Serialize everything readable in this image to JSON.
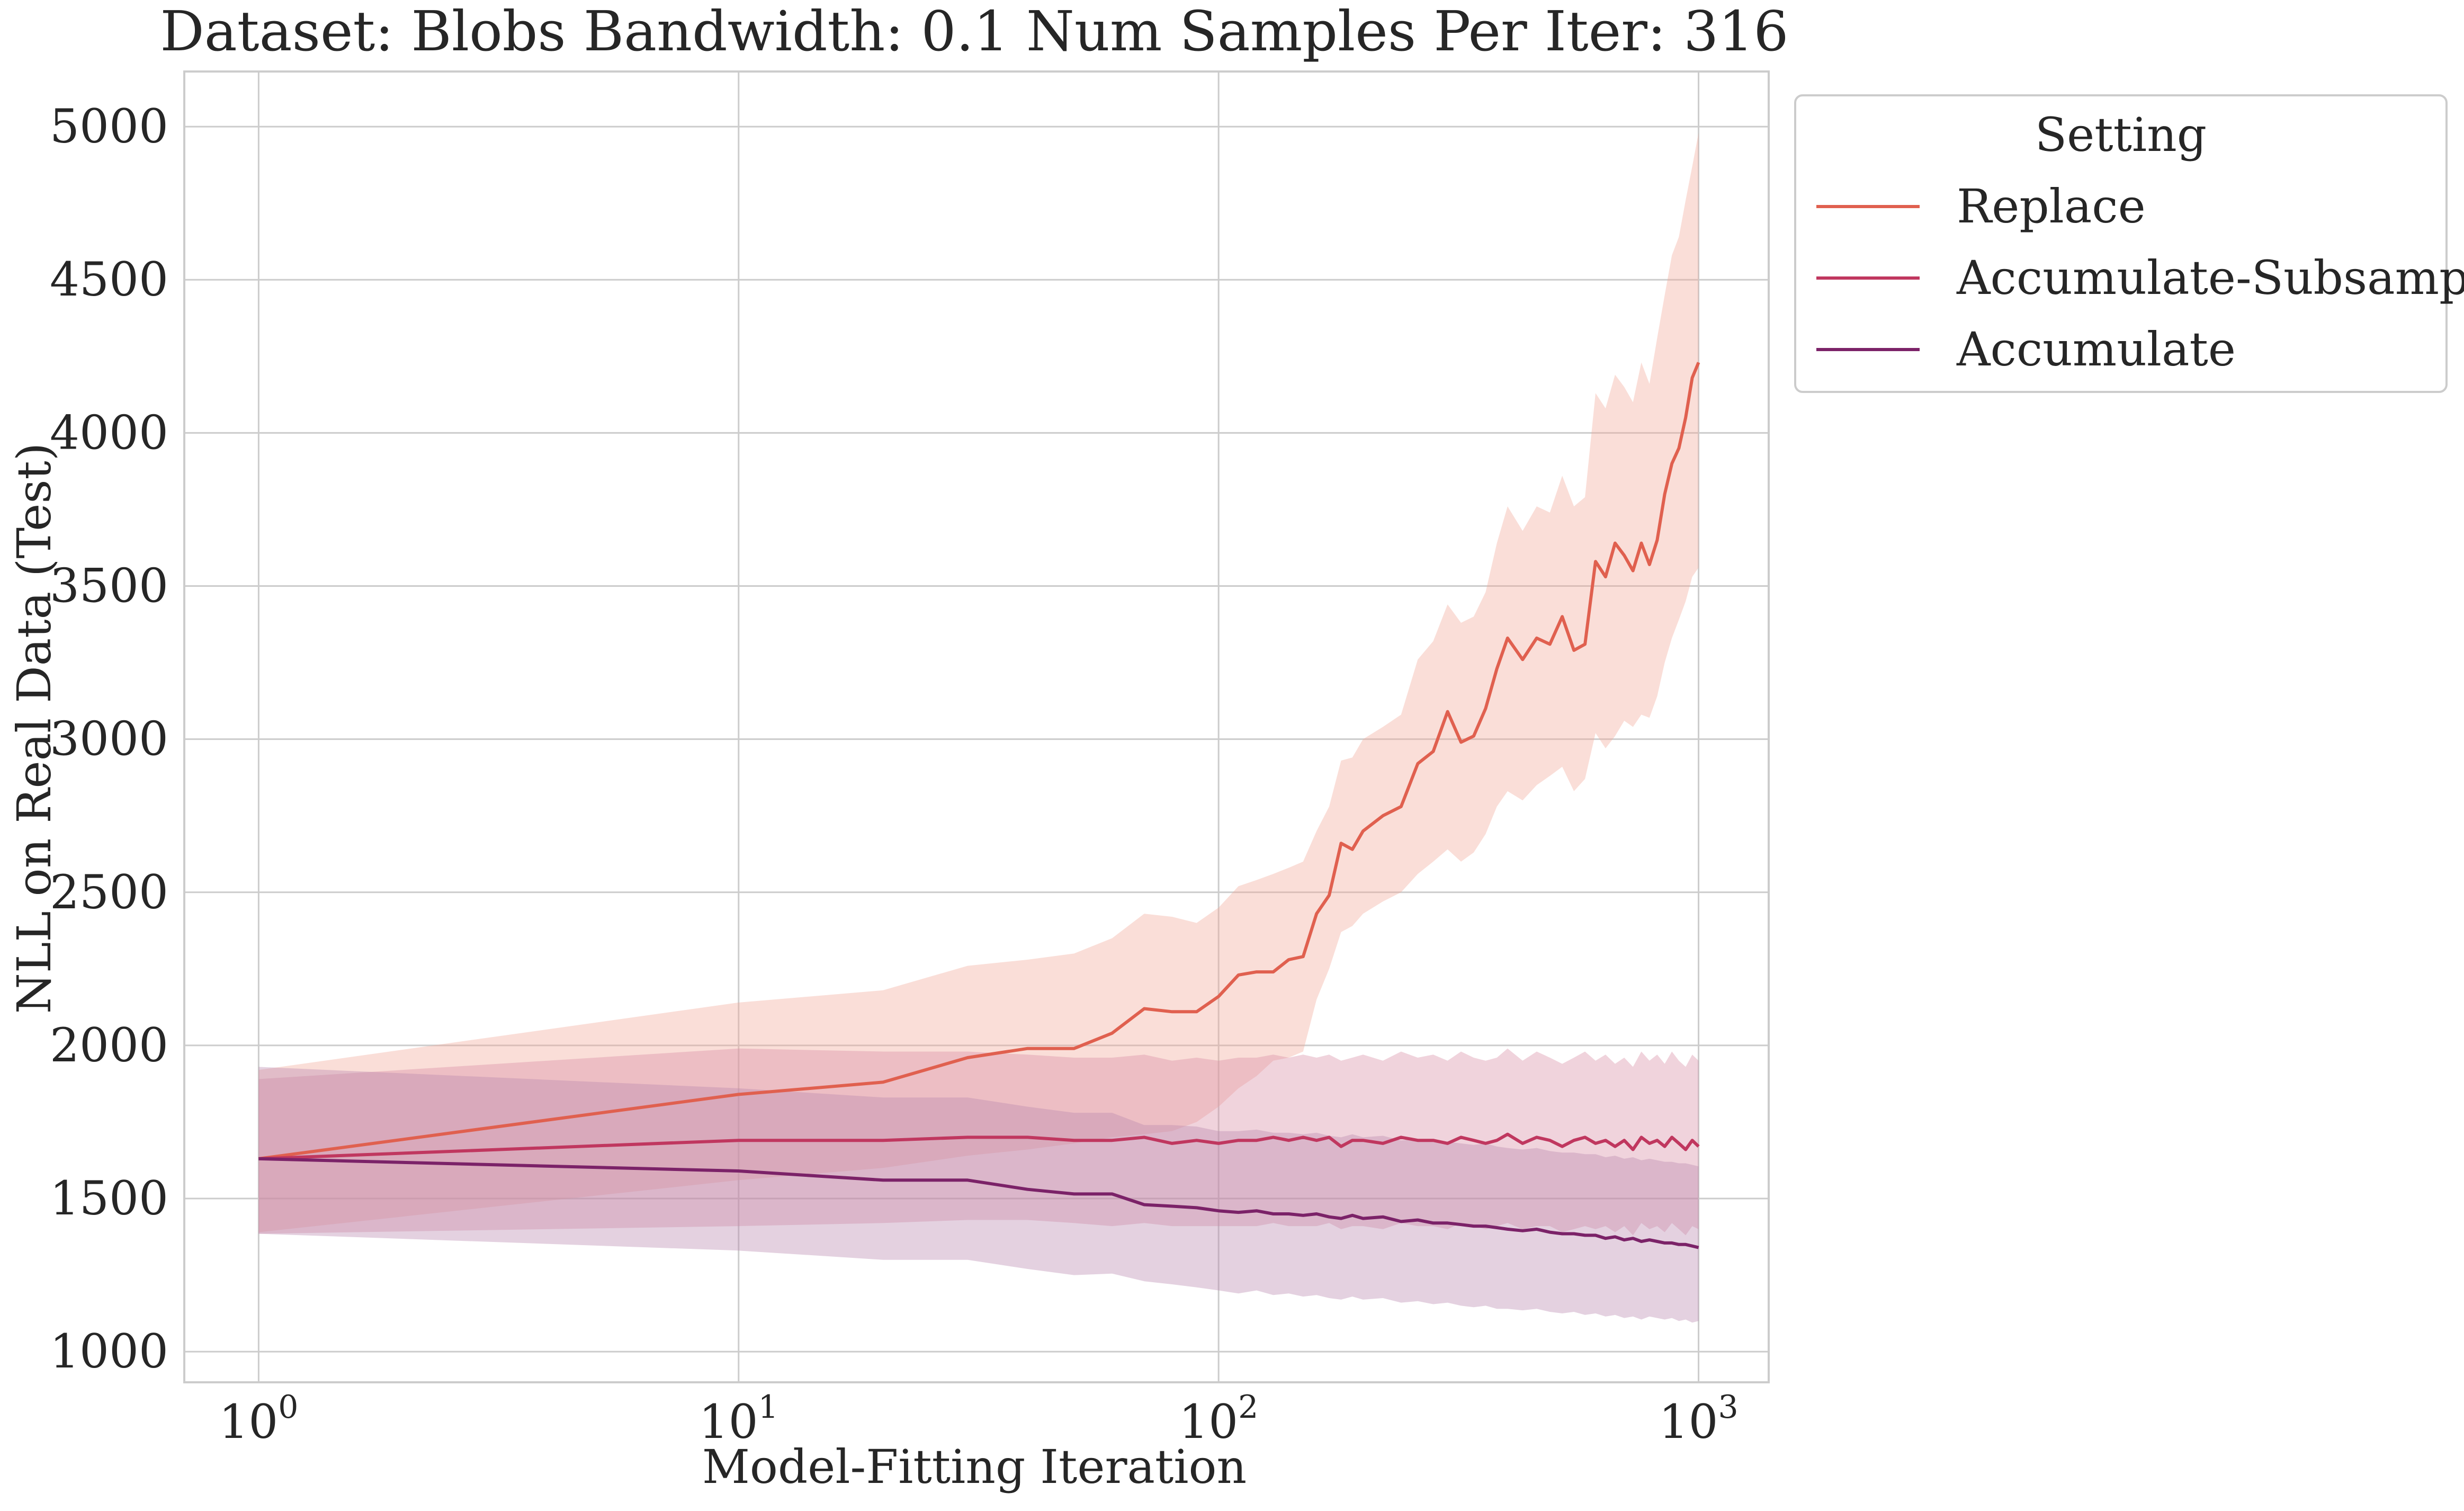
{
  "chart_data": {
    "type": "line",
    "title": "Dataset: Blobs Bandwidth: 0.1 Num Samples Per Iter: 316",
    "xlabel": "Model-Fitting Iteration",
    "ylabel": "NLL on Real Data (Test)",
    "x_scale": "log",
    "xlim": [
      0.7,
      1400
    ],
    "ylim": [
      900,
      5180
    ],
    "x_ticks": [
      1,
      10,
      100,
      1000
    ],
    "x_tick_labels": [
      {
        "base": "10",
        "exp": "0"
      },
      {
        "base": "10",
        "exp": "1"
      },
      {
        "base": "10",
        "exp": "2"
      },
      {
        "base": "10",
        "exp": "3"
      }
    ],
    "y_ticks": [
      1000,
      1500,
      2000,
      2500,
      3000,
      3500,
      4000,
      4500,
      5000
    ],
    "y_tick_labels": [
      "1000",
      "1500",
      "2000",
      "2500",
      "3000",
      "3500",
      "4000",
      "4500",
      "5000"
    ],
    "grid": true,
    "legend": {
      "title": "Setting",
      "placement": "outside-top-right"
    },
    "series": [
      {
        "name": "Replace",
        "color": "#e0604f",
        "band_color": "#f2a899",
        "x": [
          1,
          10,
          20,
          30,
          40,
          50,
          60,
          70,
          80,
          90,
          100,
          110,
          120,
          130,
          140,
          150,
          160,
          170,
          180,
          190,
          200,
          220,
          240,
          260,
          280,
          300,
          320,
          340,
          360,
          380,
          400,
          430,
          460,
          490,
          520,
          550,
          580,
          610,
          640,
          670,
          700,
          730,
          760,
          790,
          820,
          850,
          880,
          910,
          940,
          970,
          1000
        ],
        "y": [
          1630,
          1840,
          1880,
          1960,
          1990,
          1990,
          2040,
          2120,
          2110,
          2110,
          2160,
          2230,
          2240,
          2240,
          2280,
          2290,
          2430,
          2490,
          2660,
          2640,
          2700,
          2750,
          2780,
          2920,
          2960,
          3090,
          2990,
          3010,
          3100,
          3230,
          3330,
          3260,
          3330,
          3310,
          3400,
          3290,
          3310,
          3580,
          3530,
          3640,
          3600,
          3550,
          3640,
          3570,
          3650,
          3800,
          3900,
          3950,
          4050,
          4180,
          4230
        ],
        "lower": [
          1390,
          1560,
          1600,
          1640,
          1660,
          1680,
          1700,
          1710,
          1720,
          1750,
          1800,
          1860,
          1900,
          1950,
          1960,
          1980,
          2150,
          2250,
          2370,
          2390,
          2430,
          2470,
          2500,
          2560,
          2600,
          2640,
          2600,
          2630,
          2690,
          2780,
          2830,
          2800,
          2850,
          2880,
          2910,
          2830,
          2870,
          3020,
          2970,
          3010,
          3060,
          3040,
          3080,
          3070,
          3140,
          3250,
          3330,
          3390,
          3450,
          3530,
          3560
        ],
        "upper": [
          1920,
          2140,
          2180,
          2260,
          2280,
          2300,
          2350,
          2430,
          2420,
          2400,
          2450,
          2520,
          2540,
          2560,
          2580,
          2600,
          2700,
          2780,
          2930,
          2940,
          3000,
          3040,
          3080,
          3260,
          3320,
          3440,
          3380,
          3400,
          3480,
          3640,
          3760,
          3680,
          3760,
          3740,
          3860,
          3760,
          3790,
          4130,
          4080,
          4190,
          4150,
          4100,
          4230,
          4160,
          4310,
          4450,
          4580,
          4640,
          4760,
          4870,
          4980
        ]
      },
      {
        "name": "Accumulate-Subsample",
        "color": "#c0375f",
        "band_color": "#d88ca2",
        "x": [
          1,
          10,
          20,
          30,
          40,
          50,
          60,
          70,
          80,
          90,
          100,
          110,
          120,
          130,
          140,
          150,
          160,
          170,
          180,
          190,
          200,
          220,
          240,
          260,
          280,
          300,
          320,
          340,
          360,
          380,
          400,
          430,
          460,
          490,
          520,
          550,
          580,
          610,
          640,
          670,
          700,
          730,
          760,
          790,
          820,
          850,
          880,
          910,
          940,
          970,
          1000
        ],
        "y": [
          1630,
          1690,
          1690,
          1700,
          1700,
          1690,
          1690,
          1700,
          1680,
          1690,
          1680,
          1690,
          1690,
          1700,
          1690,
          1700,
          1690,
          1700,
          1670,
          1690,
          1690,
          1680,
          1700,
          1690,
          1690,
          1680,
          1700,
          1690,
          1680,
          1690,
          1710,
          1680,
          1700,
          1690,
          1670,
          1690,
          1700,
          1680,
          1690,
          1670,
          1690,
          1660,
          1700,
          1680,
          1690,
          1670,
          1700,
          1680,
          1660,
          1690,
          1670
        ],
        "lower": [
          1385,
          1410,
          1420,
          1430,
          1430,
          1420,
          1410,
          1420,
          1410,
          1410,
          1410,
          1410,
          1410,
          1420,
          1410,
          1410,
          1410,
          1420,
          1400,
          1410,
          1410,
          1400,
          1420,
          1410,
          1410,
          1400,
          1420,
          1410,
          1400,
          1410,
          1420,
          1400,
          1410,
          1410,
          1390,
          1400,
          1410,
          1400,
          1410,
          1390,
          1410,
          1380,
          1420,
          1400,
          1410,
          1390,
          1420,
          1400,
          1380,
          1410,
          1400
        ],
        "upper": [
          1890,
          1990,
          1980,
          1980,
          1970,
          1960,
          1960,
          1970,
          1950,
          1960,
          1950,
          1960,
          1960,
          1970,
          1960,
          1970,
          1960,
          1970,
          1950,
          1960,
          1970,
          1950,
          1980,
          1960,
          1970,
          1950,
          1980,
          1960,
          1950,
          1960,
          1990,
          1950,
          1980,
          1960,
          1940,
          1960,
          1980,
          1950,
          1970,
          1940,
          1960,
          1930,
          1980,
          1950,
          1970,
          1940,
          1980,
          1950,
          1930,
          1970,
          1950
        ]
      },
      {
        "name": "Accumulate",
        "color": "#7b2268",
        "band_color": "#b985ad",
        "x": [
          1,
          10,
          20,
          30,
          40,
          50,
          60,
          70,
          80,
          90,
          100,
          110,
          120,
          130,
          140,
          150,
          160,
          170,
          180,
          190,
          200,
          220,
          240,
          260,
          280,
          300,
          320,
          340,
          360,
          380,
          400,
          430,
          460,
          490,
          520,
          550,
          580,
          610,
          640,
          670,
          700,
          730,
          760,
          790,
          820,
          850,
          880,
          910,
          940,
          970,
          1000
        ],
        "y": [
          1630,
          1590,
          1560,
          1560,
          1530,
          1515,
          1515,
          1480,
          1475,
          1470,
          1460,
          1455,
          1460,
          1450,
          1450,
          1445,
          1450,
          1440,
          1435,
          1445,
          1435,
          1440,
          1425,
          1430,
          1420,
          1420,
          1415,
          1410,
          1410,
          1405,
          1400,
          1395,
          1400,
          1390,
          1385,
          1385,
          1380,
          1380,
          1370,
          1375,
          1365,
          1370,
          1360,
          1365,
          1360,
          1355,
          1355,
          1350,
          1350,
          1345,
          1340
        ],
        "lower": [
          1385,
          1330,
          1300,
          1300,
          1270,
          1250,
          1255,
          1230,
          1220,
          1210,
          1200,
          1190,
          1200,
          1185,
          1190,
          1180,
          1185,
          1175,
          1170,
          1180,
          1170,
          1175,
          1160,
          1165,
          1155,
          1160,
          1150,
          1145,
          1150,
          1140,
          1140,
          1135,
          1140,
          1130,
          1125,
          1130,
          1120,
          1125,
          1115,
          1120,
          1110,
          1115,
          1105,
          1115,
          1110,
          1105,
          1110,
          1100,
          1105,
          1095,
          1100
        ],
        "upper": [
          1930,
          1860,
          1830,
          1830,
          1800,
          1780,
          1780,
          1740,
          1740,
          1735,
          1720,
          1720,
          1725,
          1715,
          1715,
          1710,
          1715,
          1705,
          1700,
          1710,
          1700,
          1705,
          1690,
          1695,
          1685,
          1685,
          1680,
          1675,
          1680,
          1670,
          1665,
          1660,
          1665,
          1655,
          1650,
          1650,
          1645,
          1645,
          1635,
          1640,
          1630,
          1635,
          1625,
          1630,
          1625,
          1620,
          1620,
          1615,
          1615,
          1610,
          1605
        ]
      }
    ]
  }
}
